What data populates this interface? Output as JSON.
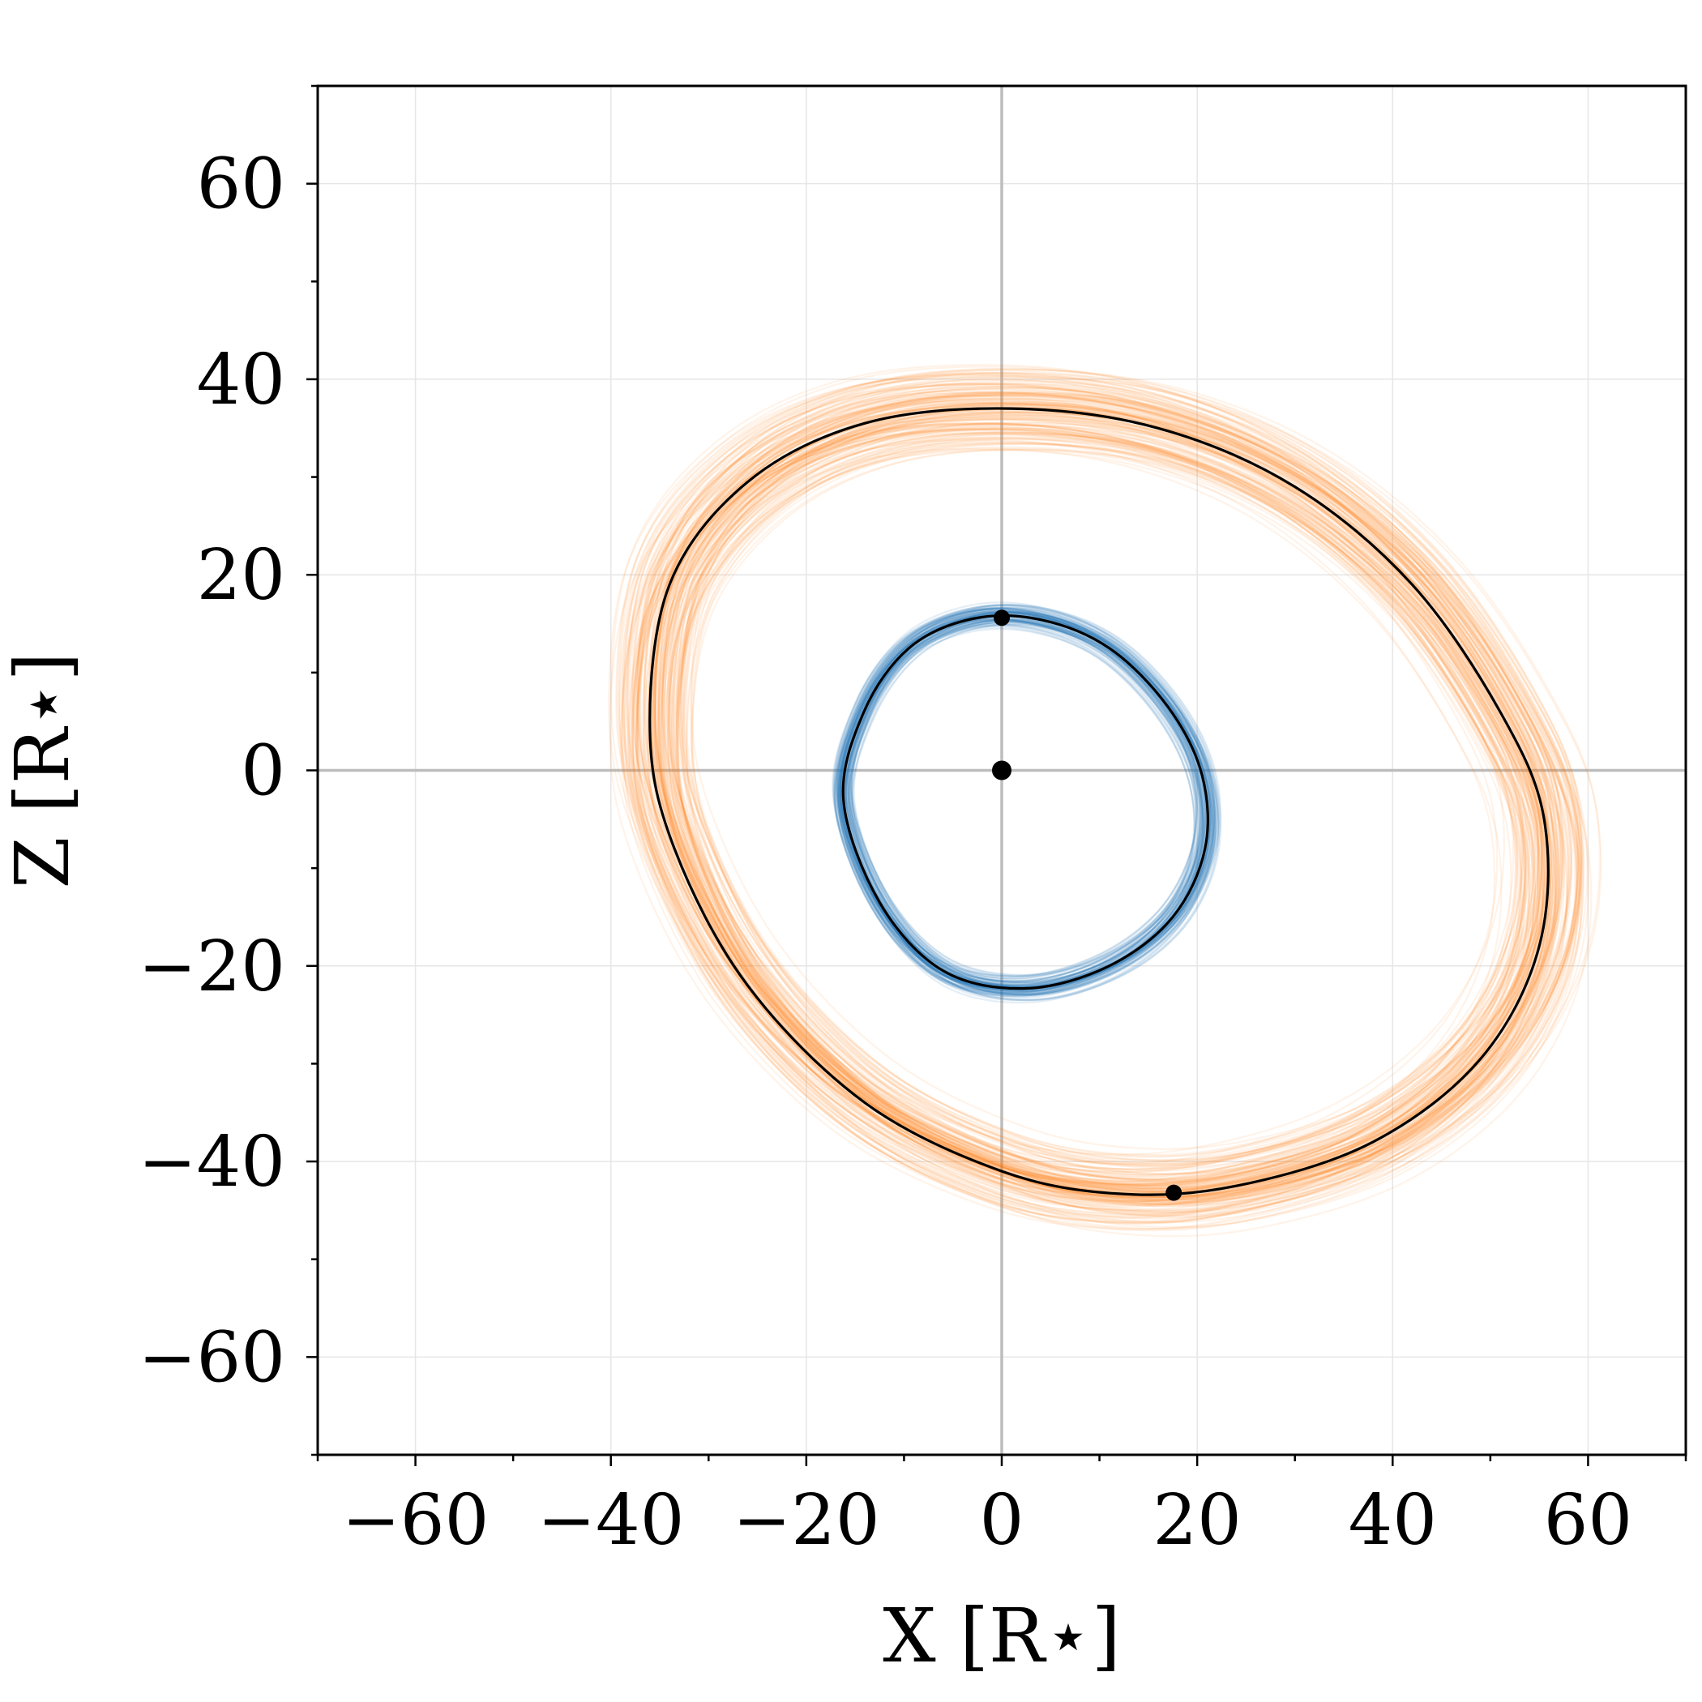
{
  "chart_data": {
    "type": "line",
    "title": "",
    "xlabel": "X [R⋆]",
    "ylabel": "Z [R⋆]",
    "xlim": [
      -70,
      70
    ],
    "ylim": [
      -70,
      70
    ],
    "xticks": [
      -60,
      -40,
      -20,
      0,
      20,
      40,
      60
    ],
    "yticks": [
      -60,
      -40,
      -20,
      0,
      20,
      40,
      60
    ],
    "xtick_labels": [
      "−60",
      "−40",
      "−20",
      "0",
      "20",
      "40",
      "60"
    ],
    "ytick_labels": [
      "−60",
      "−40",
      "−20",
      "0",
      "20",
      "40",
      "60"
    ],
    "grid": true,
    "colors": {
      "inner_orbit": "#1f77b4",
      "outer_orbit": "#ff7f0e",
      "best_fit": "#000000",
      "axis_lines": "#bdbdbd",
      "grid": "#e6e6e6"
    },
    "series": [
      {
        "kind": "posterior-samples",
        "color": "#1f77b4",
        "x": [
          -16.2,
          -14.1,
          -9.5,
          -3.0,
          4.0,
          11.0,
          17.0,
          20.5,
          20.8,
          17.5,
          11.0,
          2.5,
          -6.0,
          -12.5,
          -16.2
        ],
        "z": [
          -3.0,
          6.0,
          12.5,
          15.5,
          15.4,
          12.5,
          6.5,
          -0.5,
          -8.0,
          -15.0,
          -20.0,
          -22.3,
          -20.5,
          -13.5,
          -3.0
        ]
      },
      {
        "kind": "posterior-samples",
        "color": "#ff7f0e",
        "x": [
          -36.0,
          -34.0,
          -26.0,
          -14.0,
          1.0,
          16.0,
          30.0,
          42.0,
          51.0,
          55.5,
          55.0,
          49.0,
          38.0,
          24.0,
          12.0,
          0.0,
          -14.0,
          -26.0,
          -33.5,
          -36.0
        ],
        "z": [
          4.0,
          19.0,
          29.5,
          35.5,
          37.0,
          35.0,
          29.0,
          19.0,
          6.0,
          -5.0,
          -18.0,
          -29.5,
          -38.0,
          -42.5,
          -43.3,
          -41.0,
          -34.0,
          -22.0,
          -8.0,
          4.0
        ]
      }
    ],
    "points": [
      {
        "x": 0.0,
        "z": 0.0
      },
      {
        "x": 0.0,
        "z": 15.6
      },
      {
        "x": 17.6,
        "z": -43.2
      }
    ]
  }
}
